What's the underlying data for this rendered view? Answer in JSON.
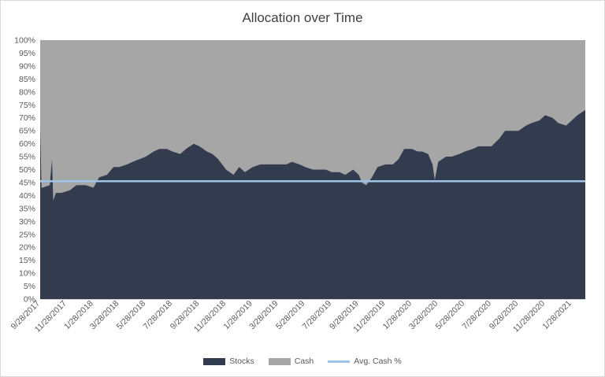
{
  "chart_data": {
    "type": "area",
    "title": "Allocation over Time",
    "xlabel": "",
    "ylabel": "",
    "ylim": [
      0,
      100
    ],
    "y_ticks": [
      "0%",
      "5%",
      "10%",
      "15%",
      "20%",
      "25%",
      "30%",
      "35%",
      "40%",
      "45%",
      "50%",
      "55%",
      "60%",
      "65%",
      "70%",
      "75%",
      "80%",
      "85%",
      "90%",
      "95%",
      "100%"
    ],
    "x_ticks": [
      "9/28/2017",
      "11/28/2017",
      "1/28/2018",
      "3/28/2018",
      "5/28/2018",
      "7/28/2018",
      "9/28/2018",
      "11/28/2018",
      "1/28/2019",
      "3/28/2019",
      "5/28/2019",
      "7/28/2019",
      "9/28/2019",
      "11/28/2019",
      "1/28/2020",
      "3/28/2020",
      "5/28/2020",
      "7/28/2020",
      "9/28/2020",
      "11/28/2020",
      "1/28/2021"
    ],
    "x_range": [
      "9/28/2017",
      "2/28/2021"
    ],
    "stacked": true,
    "series": [
      {
        "name": "Stocks",
        "color": "#323c4e",
        "x": [
          "9/28/2017",
          "10/1/2017",
          "10/3/2017",
          "10/20/2017",
          "10/25/2017",
          "10/28/2017",
          "11/3/2017",
          "11/8/2017",
          "11/15/2017",
          "12/5/2017",
          "12/20/2017",
          "1/10/2018",
          "1/28/2018",
          "2/10/2018",
          "2/28/2018",
          "3/15/2018",
          "3/28/2018",
          "4/15/2018",
          "4/28/2018",
          "5/28/2018",
          "6/15/2018",
          "6/28/2018",
          "7/15/2018",
          "7/28/2018",
          "8/15/2018",
          "8/28/2018",
          "9/15/2018",
          "9/28/2018",
          "10/15/2018",
          "10/28/2018",
          "11/10/2018",
          "11/28/2018",
          "12/15/2018",
          "12/28/2018",
          "1/10/2019",
          "1/28/2019",
          "2/15/2019",
          "2/28/2019",
          "3/15/2019",
          "3/28/2019",
          "4/15/2019",
          "4/28/2019",
          "5/15/2019",
          "5/28/2019",
          "6/15/2019",
          "6/28/2019",
          "7/15/2019",
          "7/28/2019",
          "8/15/2019",
          "8/28/2019",
          "9/15/2019",
          "9/28/2019",
          "10/5/2019",
          "10/15/2019",
          "10/28/2019",
          "11/10/2019",
          "11/28/2019",
          "12/15/2019",
          "12/28/2019",
          "1/10/2020",
          "1/28/2020",
          "2/10/2020",
          "2/20/2020",
          "3/5/2020",
          "3/15/2020",
          "3/20/2020",
          "3/28/2020",
          "4/15/2020",
          "4/28/2020",
          "5/15/2020",
          "5/28/2020",
          "6/15/2020",
          "6/28/2020",
          "7/15/2020",
          "7/28/2020",
          "8/15/2020",
          "8/28/2020",
          "9/15/2020",
          "9/28/2020",
          "10/15/2020",
          "10/28/2020",
          "11/15/2020",
          "11/28/2020",
          "12/15/2020",
          "12/28/2020",
          "1/15/2021",
          "1/28/2021",
          "2/10/2021",
          "2/28/2021"
        ],
        "values": [
          67,
          43,
          43,
          44,
          54,
          38,
          41,
          41,
          41,
          42,
          44,
          44,
          43,
          47,
          48,
          51,
          51,
          52,
          53,
          55,
          57,
          58,
          58,
          57,
          56,
          58,
          60,
          59,
          57,
          56,
          54,
          50,
          48,
          51,
          49,
          51,
          52,
          52,
          52,
          52,
          52,
          53,
          52,
          51,
          50,
          50,
          50,
          49,
          49,
          48,
          50,
          48,
          45,
          44,
          47,
          51,
          52,
          52,
          54,
          58,
          58,
          57,
          57,
          56,
          52,
          46,
          53,
          55,
          55,
          56,
          57,
          58,
          59,
          59,
          59,
          62,
          65,
          65,
          65,
          67,
          68,
          69,
          71,
          70,
          68,
          67,
          69,
          71,
          73
        ]
      },
      {
        "name": "Cash",
        "color": "#a6a6a6"
      }
    ],
    "reference_lines": [
      {
        "name": "Avg. Cash %",
        "value": 45.5,
        "color": "#9dc3e6"
      }
    ],
    "legend_position": "bottom",
    "grid": false
  }
}
